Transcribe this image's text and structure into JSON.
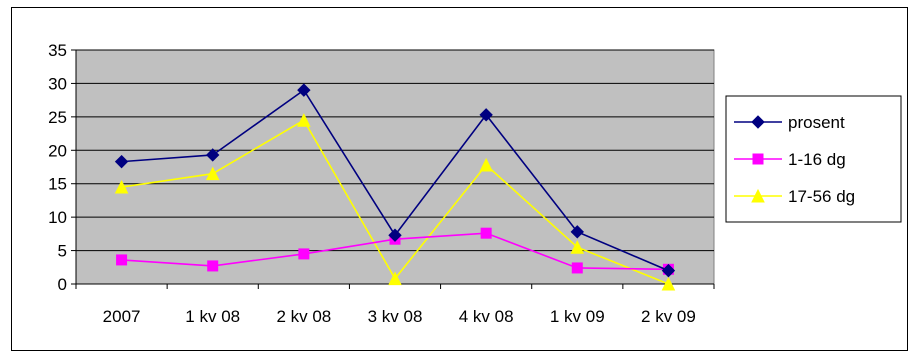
{
  "chart_data": {
    "type": "line",
    "categories": [
      "2007",
      "1 kv 08",
      "2 kv 08",
      "3 kv 08",
      "4 kv 08",
      "1 kv 09",
      "2 kv 09"
    ],
    "ylim": [
      0,
      35
    ],
    "yticks": [
      0,
      5,
      10,
      15,
      20,
      25,
      30,
      35
    ],
    "grid": true,
    "plot_background": "#c0c0c0",
    "legend_position": "right",
    "series": [
      {
        "name": "prosent",
        "values": [
          18.3,
          19.3,
          29.0,
          7.3,
          25.3,
          7.8,
          2.0
        ],
        "color": "#000080",
        "marker": "diamond"
      },
      {
        "name": "1-16 dg",
        "values": [
          3.6,
          2.7,
          4.5,
          6.7,
          7.6,
          2.4,
          2.2
        ],
        "color": "#ff00ff",
        "marker": "square"
      },
      {
        "name": "17-56 dg",
        "values": [
          14.5,
          16.5,
          24.5,
          0.8,
          17.8,
          5.5,
          0.0
        ],
        "color": "#ffff00",
        "marker": "triangle"
      }
    ]
  }
}
